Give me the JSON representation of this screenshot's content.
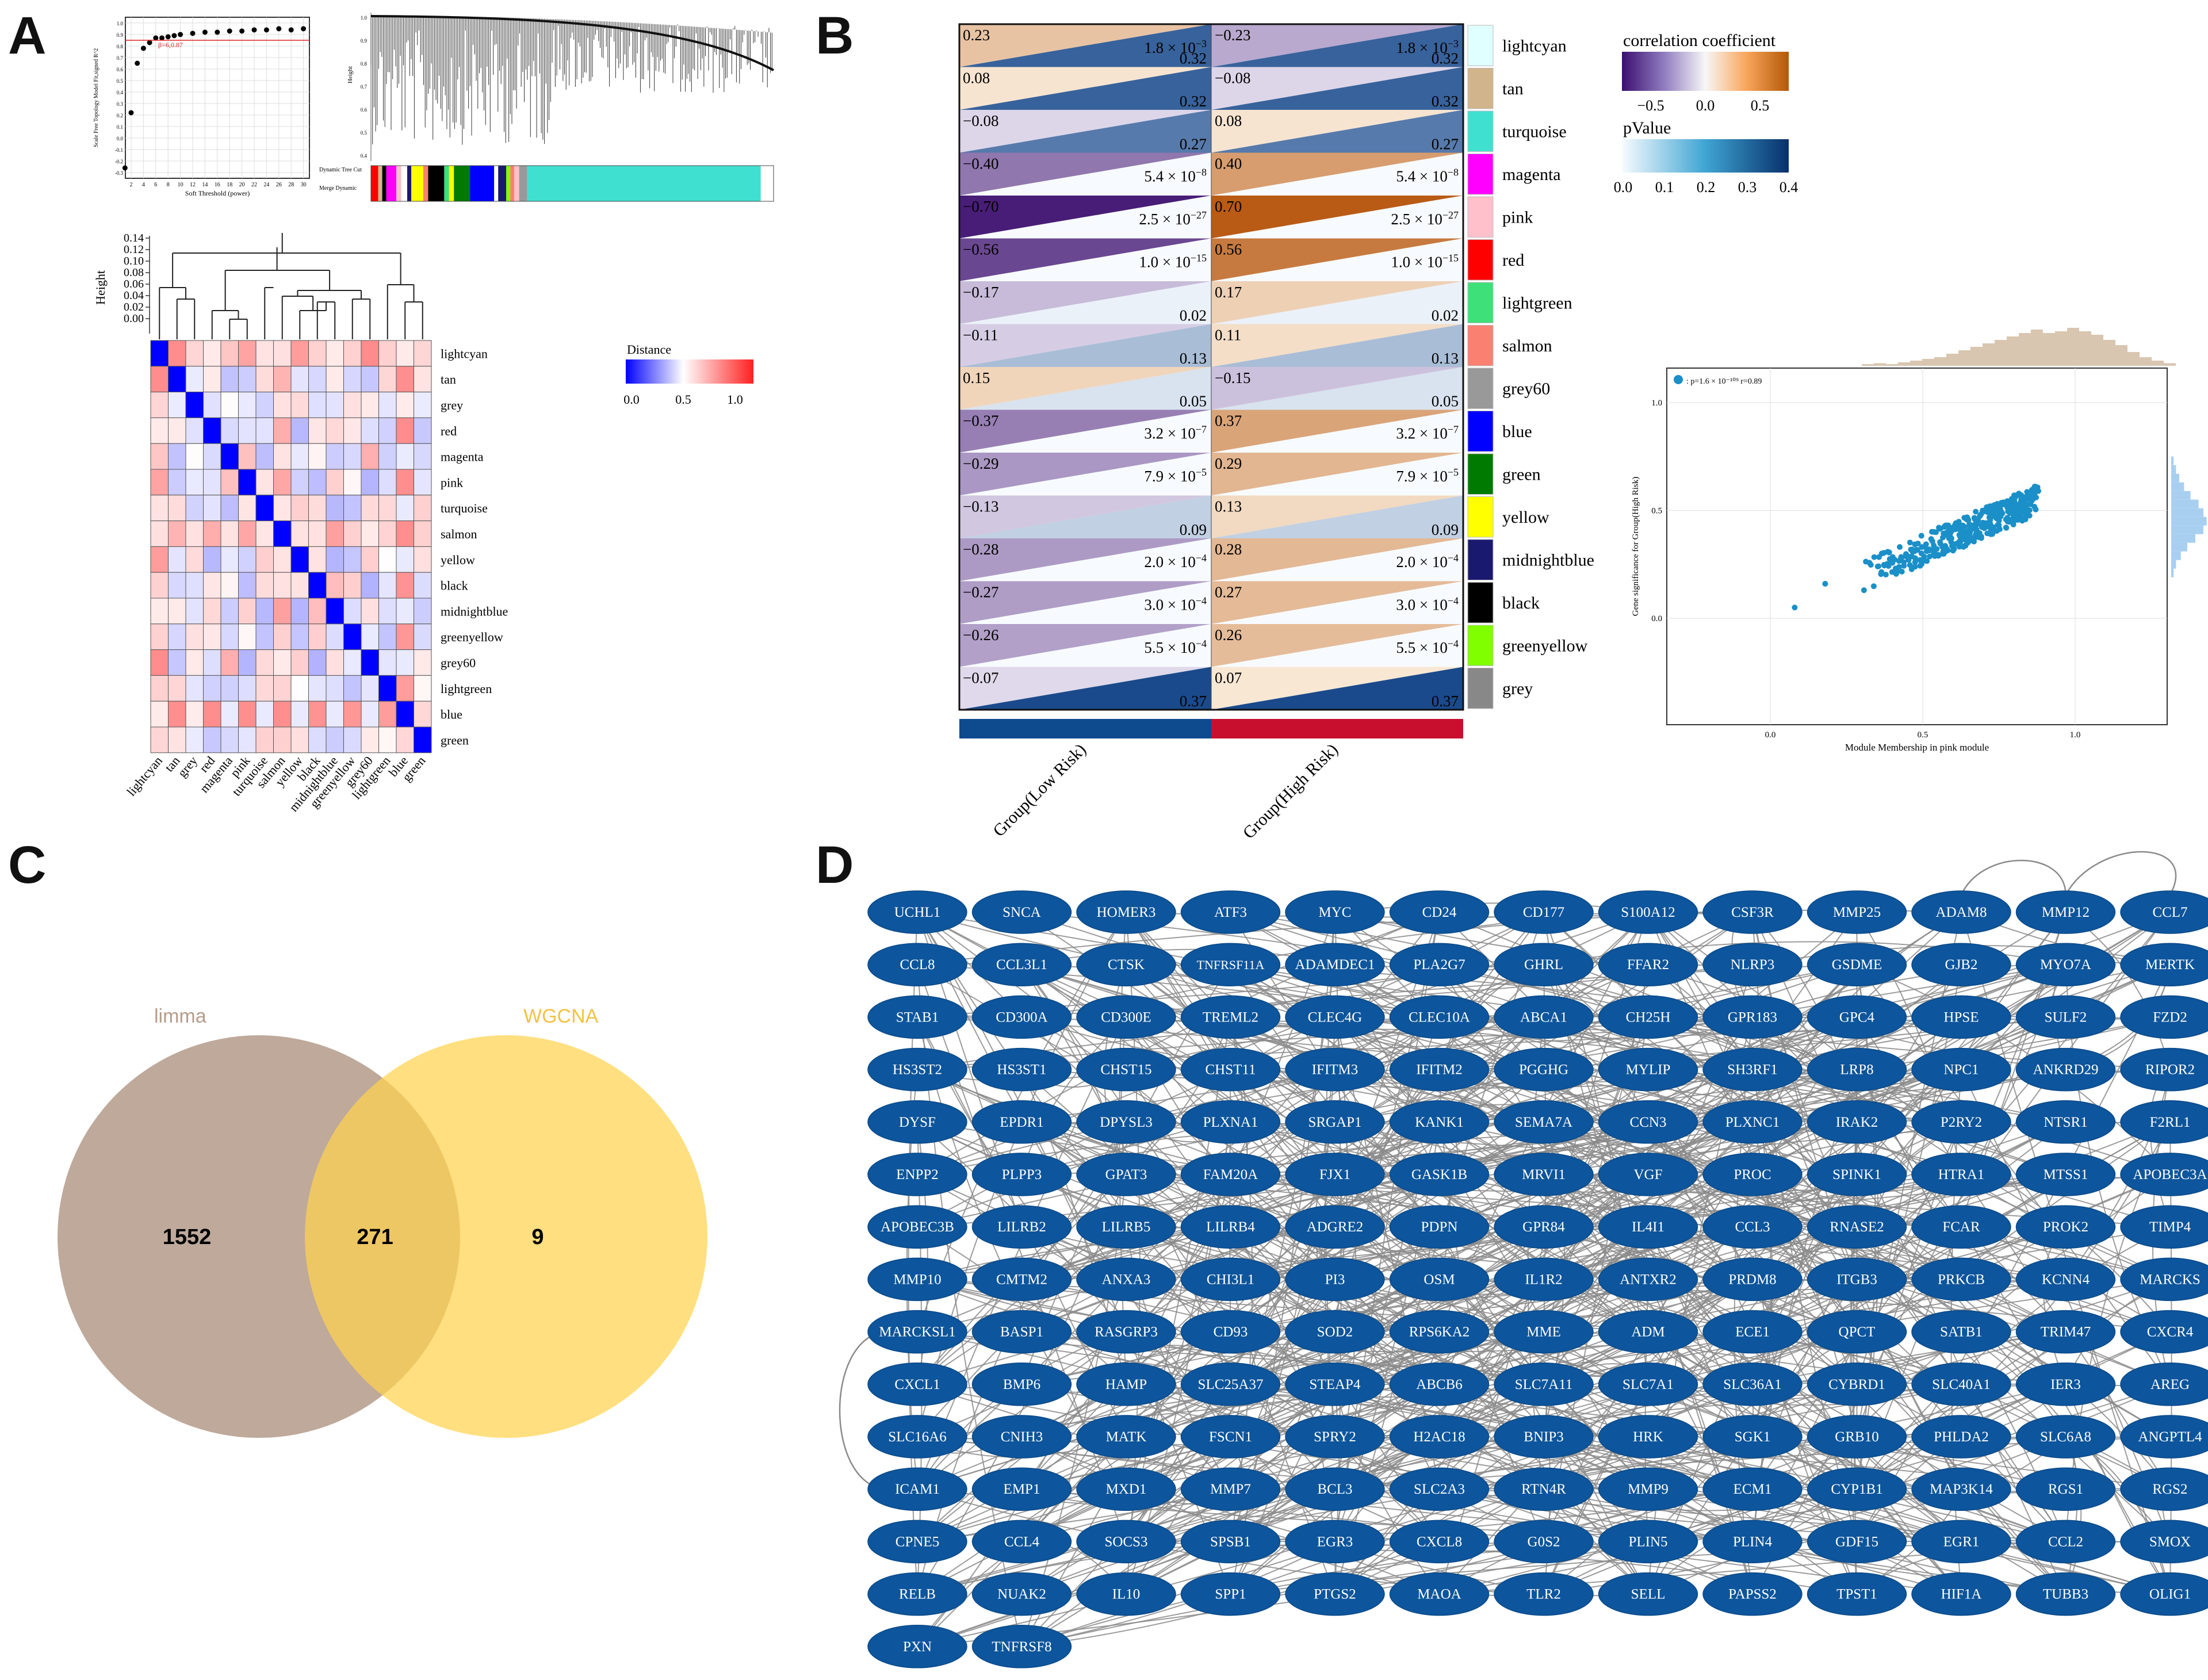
{
  "panels": {
    "a": "A",
    "b": "B",
    "c": "C",
    "d": "D"
  },
  "panel_a": {
    "scale_free": {
      "xlabel": "Soft Threshold (power)",
      "ylabel": "Scale Free Topology Model Fit,signed R^2",
      "x_ticks": [
        "2",
        "4",
        "6",
        "8",
        "10",
        "12",
        "14",
        "16",
        "18",
        "20",
        "22",
        "24",
        "26",
        "28",
        "30"
      ],
      "y_ticks": [
        "-0.3",
        "-0.2",
        "-0.1",
        "0.0",
        "0.1",
        "0.2",
        "0.3",
        "0.4",
        "0.5",
        "0.6",
        "0.7",
        "0.8",
        "0.9",
        "1.0"
      ],
      "annotation": "β=6,0.87"
    },
    "dendro": {
      "ylabel": "Height",
      "y_ticks": [
        "0.4",
        "0.5",
        "0.6",
        "0.7",
        "0.8",
        "0.9",
        "1.0"
      ],
      "row1": "Dynamic Tree Cut",
      "row2": "Merge Dynamic"
    },
    "heatmap": {
      "height_label": "Height",
      "height_ticks": [
        "0.14",
        "0.12",
        "0.10",
        "0.08",
        "0.06",
        "0.04",
        "0.02",
        "0.00"
      ],
      "legend_title": "Distance",
      "legend_ticks": [
        "0.0",
        "0.5",
        "1.0"
      ],
      "modules": [
        "lightcyan",
        "tan",
        "grey",
        "red",
        "magenta",
        "pink",
        "turquoise",
        "salmon",
        "yellow",
        "black",
        "midnightblue",
        "greenyellow",
        "grey60",
        "lightgreen",
        "blue",
        "green"
      ]
    }
  },
  "panel_b": {
    "modules": [
      {
        "name": "lightcyan",
        "color": "#e0ffff",
        "low_r": "0.23",
        "low_p": "1.8 × 10",
        "low_e": "−3",
        "low_v": "0.32",
        "high_r": "−0.23",
        "high_p": "1.8 × 10",
        "high_e": "−3",
        "high_v": "0.32"
      },
      {
        "name": "tan",
        "color": "#d2b48c",
        "low_r": "0.08",
        "low_p": "",
        "low_e": "",
        "low_v": "0.32",
        "high_r": "−0.08",
        "high_p": "",
        "high_e": "",
        "high_v": "0.32"
      },
      {
        "name": "turquoise",
        "color": "#40e0d0",
        "low_r": "−0.08",
        "low_p": "",
        "low_e": "",
        "low_v": "0.27",
        "high_r": "0.08",
        "high_p": "",
        "high_e": "",
        "high_v": "0.27"
      },
      {
        "name": "magenta",
        "color": "#ff00ff",
        "low_r": "−0.40",
        "low_p": "5.4 × 10",
        "low_e": "−8",
        "low_v": "",
        "high_r": "0.40",
        "high_p": "5.4 × 10",
        "high_e": "−8",
        "high_v": ""
      },
      {
        "name": "pink",
        "color": "#ffc0cb",
        "low_r": "−0.70",
        "low_p": "2.5 × 10",
        "low_e": "−27",
        "low_v": "",
        "high_r": "0.70",
        "high_p": "2.5 × 10",
        "high_e": "−27",
        "high_v": ""
      },
      {
        "name": "red",
        "color": "#ff0000",
        "low_r": "−0.56",
        "low_p": "1.0 × 10",
        "low_e": "−15",
        "low_v": "",
        "high_r": "0.56",
        "high_p": "1.0 × 10",
        "high_e": "−15",
        "high_v": ""
      },
      {
        "name": "lightgreen",
        "color": "#3ee07a",
        "low_r": "−0.17",
        "low_p": "",
        "low_e": "",
        "low_v": "0.02",
        "high_r": "0.17",
        "high_p": "",
        "high_e": "",
        "high_v": "0.02"
      },
      {
        "name": "salmon",
        "color": "#fa8072",
        "low_r": "−0.11",
        "low_p": "",
        "low_e": "",
        "low_v": "0.13",
        "high_r": "0.11",
        "high_p": "",
        "high_e": "",
        "high_v": "0.13"
      },
      {
        "name": "grey60",
        "color": "#999999",
        "low_r": "0.15",
        "low_p": "",
        "low_e": "",
        "low_v": "0.05",
        "high_r": "−0.15",
        "high_p": "",
        "high_e": "",
        "high_v": "0.05"
      },
      {
        "name": "blue",
        "color": "#0000ff",
        "low_r": "−0.37",
        "low_p": "3.2 × 10",
        "low_e": "−7",
        "low_v": "",
        "high_r": "0.37",
        "high_p": "3.2 × 10",
        "high_e": "−7",
        "high_v": ""
      },
      {
        "name": "green",
        "color": "#007a00",
        "low_r": "−0.29",
        "low_p": "7.9 × 10",
        "low_e": "−5",
        "low_v": "",
        "high_r": "0.29",
        "high_p": "7.9 × 10",
        "high_e": "−5",
        "high_v": ""
      },
      {
        "name": "yellow",
        "color": "#ffff00",
        "low_r": "−0.13",
        "low_p": "",
        "low_e": "",
        "low_v": "0.09",
        "high_r": "0.13",
        "high_p": "",
        "high_e": "",
        "high_v": "0.09"
      },
      {
        "name": "midnightblue",
        "color": "#191970",
        "low_r": "−0.28",
        "low_p": "2.0 × 10",
        "low_e": "−4",
        "low_v": "",
        "high_r": "0.28",
        "high_p": "2.0 × 10",
        "high_e": "−4",
        "high_v": ""
      },
      {
        "name": "black",
        "color": "#000000",
        "low_r": "−0.27",
        "low_p": "3.0 × 10",
        "low_e": "−4",
        "low_v": "",
        "high_r": "0.27",
        "high_p": "3.0 × 10",
        "high_e": "−4",
        "high_v": ""
      },
      {
        "name": "greenyellow",
        "color": "#7fff00",
        "low_r": "−0.26",
        "low_p": "5.5 × 10",
        "low_e": "−4",
        "low_v": "",
        "high_r": "0.26",
        "high_p": "5.5 × 10",
        "high_e": "−4",
        "high_v": ""
      },
      {
        "name": "grey",
        "color": "#888888",
        "low_r": "−0.07",
        "low_p": "",
        "low_e": "",
        "low_v": "0.37",
        "high_r": "0.07",
        "high_p": "",
        "high_e": "",
        "high_v": "0.37"
      }
    ],
    "group_low": "Group(Low Risk)",
    "group_high": "Group(High Risk)",
    "legend_corr_title": "correlation coefficient",
    "legend_corr_ticks": [
      "−0.5",
      "0.0",
      "0.5"
    ],
    "legend_p_title": "pValue",
    "legend_p_ticks": [
      "0.0",
      "0.1",
      "0.2",
      "0.3",
      "0.4"
    ],
    "scatter": {
      "legend": ": p=1.6 × 10⁻¹⁰⁹ r=0.89",
      "xlabel": "Module Membership in pink module",
      "ylabel": "Gene significance for Group(High Risk)",
      "x_ticks": [
        "0.0",
        "0.5",
        "1.0"
      ],
      "y_ticks": [
        "1.0",
        "0.5",
        "0.0"
      ]
    }
  },
  "panel_c": {
    "left_label": "limma",
    "right_label": "WGCNA",
    "left_only": "1552",
    "overlap": "271",
    "right_only": "9"
  },
  "panel_d": {
    "rows": [
      [
        "UCHL1",
        "SNCA",
        "HOMER3",
        "ATF3",
        "MYC",
        "CD24",
        "CD177",
        "S100A12",
        "CSF3R",
        "MMP25",
        "ADAM8",
        "MMP12",
        "CCL7"
      ],
      [
        "CCL8",
        "CCL3L1",
        "CTSK",
        "TNFRSF11A",
        "ADAMDEC1",
        "PLA2G7",
        "GHRL",
        "FFAR2",
        "NLRP3",
        "GSDME",
        "GJB2",
        "MYO7A",
        "MERTK"
      ],
      [
        "STAB1",
        "CD300A",
        "CD300E",
        "TREML2",
        "CLEC4G",
        "CLEC10A",
        "ABCA1",
        "CH25H",
        "GPR183",
        "GPC4",
        "HPSE",
        "SULF2",
        "FZD2"
      ],
      [
        "HS3ST2",
        "HS3ST1",
        "CHST15",
        "CHST11",
        "IFITM3",
        "IFITM2",
        "PGGHG",
        "MYLIP",
        "SH3RF1",
        "LRP8",
        "NPC1",
        "ANKRD29",
        "RIPOR2"
      ],
      [
        "DYSF",
        "EPDR1",
        "DPYSL3",
        "PLXNA1",
        "SRGAP1",
        "KANK1",
        "SEMA7A",
        "CCN3",
        "PLXNC1",
        "IRAK2",
        "P2RY2",
        "NTSR1",
        "F2RL1"
      ],
      [
        "ENPP2",
        "PLPP3",
        "GPAT3",
        "FAM20A",
        "FJX1",
        "GASK1B",
        "MRVI1",
        "VGF",
        "PROC",
        "SPINK1",
        "HTRA1",
        "MTSS1",
        "APOBEC3A"
      ],
      [
        "APOBEC3B",
        "LILRB2",
        "LILRB5",
        "LILRB4",
        "ADGRE2",
        "PDPN",
        "GPR84",
        "IL4I1",
        "CCL3",
        "RNASE2",
        "FCAR",
        "PROK2",
        "TIMP4"
      ],
      [
        "MMP10",
        "CMTM2",
        "ANXA3",
        "CHI3L1",
        "PI3",
        "OSM",
        "IL1R2",
        "ANTXR2",
        "PRDM8",
        "ITGB3",
        "PRKCB",
        "KCNN4",
        "MARCKS"
      ],
      [
        "MARCKSL1",
        "BASP1",
        "RASGRP3",
        "CD93",
        "SOD2",
        "RPS6KA2",
        "MME",
        "ADM",
        "ECE1",
        "QPCT",
        "SATB1",
        "TRIM47",
        "CXCR4"
      ],
      [
        "CXCL1",
        "BMP6",
        "HAMP",
        "SLC25A37",
        "STEAP4",
        "ABCB6",
        "SLC7A11",
        "SLC7A1",
        "SLC36A1",
        "CYBRD1",
        "SLC40A1",
        "IER3",
        "AREG"
      ],
      [
        "SLC16A6",
        "CNIH3",
        "MATK",
        "FSCN1",
        "SPRY2",
        "H2AC18",
        "BNIP3",
        "HRK",
        "SGK1",
        "GRB10",
        "PHLDA2",
        "SLC6A8",
        "ANGPTL4"
      ],
      [
        "ICAM1",
        "EMP1",
        "MXD1",
        "MMP7",
        "BCL3",
        "SLC2A3",
        "RTN4R",
        "MMP9",
        "ECM1",
        "CYP1B1",
        "MAP3K14",
        "RGS1",
        "RGS2"
      ],
      [
        "CPNE5",
        "CCL4",
        "SOCS3",
        "SPSB1",
        "EGR3",
        "CXCL8",
        "G0S2",
        "PLIN5",
        "PLIN4",
        "GDF15",
        "EGR1",
        "CCL2",
        "SMOX"
      ],
      [
        "RELB",
        "NUAK2",
        "IL10",
        "SPP1",
        "PTGS2",
        "MAOA",
        "TLR2",
        "SELL",
        "PAPSS2",
        "TPST1",
        "HIF1A",
        "TUBB3",
        "OLIG1"
      ],
      [
        "PXN",
        "TNFRSF8"
      ]
    ]
  }
}
